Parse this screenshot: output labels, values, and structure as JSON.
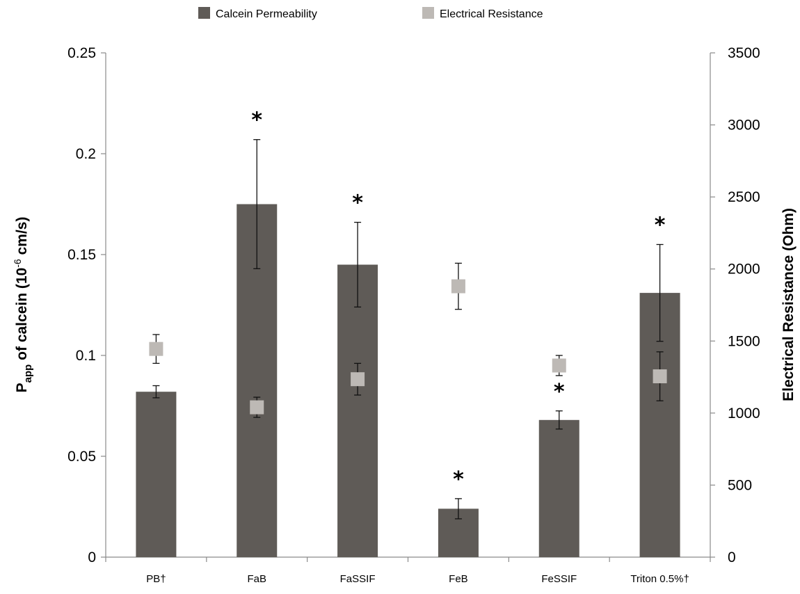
{
  "chart_data": {
    "type": "bar",
    "categories": [
      "PB†",
      "FaB",
      "FaSSIF",
      "FeB",
      "FeSSIF",
      "Triton 0.5%†"
    ],
    "series": [
      {
        "name": "Calcein Permeability",
        "kind": "bar",
        "axis": "left",
        "color": "#5f5b57",
        "values": [
          0.082,
          0.175,
          0.145,
          0.024,
          0.068,
          0.131
        ],
        "errors": [
          0.003,
          0.032,
          0.021,
          0.005,
          0.0045,
          0.024
        ]
      },
      {
        "name": "Electrical Resistance",
        "kind": "marker",
        "axis": "right",
        "color": "#bdb9b5",
        "values": [
          1445,
          1040,
          1235,
          1880,
          1330,
          1255
        ],
        "errors": [
          100,
          70,
          110,
          160,
          70,
          170
        ]
      }
    ],
    "significance": [
      "",
      "*",
      "*",
      "*",
      "*",
      "*"
    ],
    "ylabel_left_main": "P",
    "ylabel_left_sub": "app",
    "ylabel_left_rest": " of calcein (10",
    "ylabel_left_sup": "-6",
    "ylabel_left_end": " cm/s)",
    "ylabel_right": "Electrical Resistance (Ohm)",
    "ylim_left": [
      0,
      0.25
    ],
    "yticks_left": [
      "0",
      "0.05",
      "0.1",
      "0.15",
      "0.2",
      "0.25"
    ],
    "ylim_right": [
      0,
      3500
    ],
    "yticks_right": [
      "0",
      "500",
      "1000",
      "1500",
      "2000",
      "2500",
      "3000",
      "3500"
    ],
    "legend_position": "top",
    "grid": false
  }
}
